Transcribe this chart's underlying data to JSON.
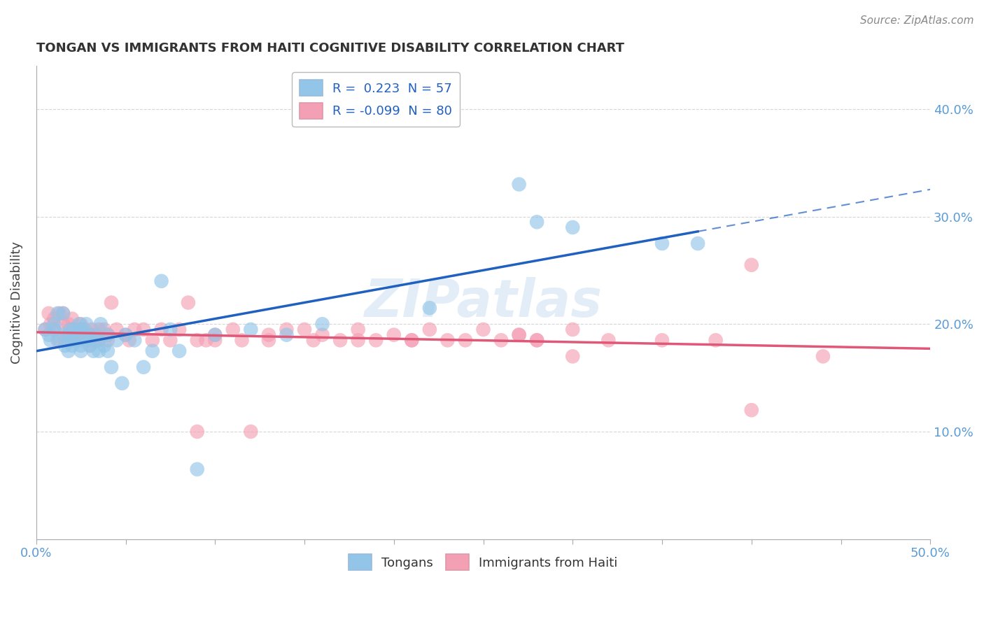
{
  "title": "TONGAN VS IMMIGRANTS FROM HAITI COGNITIVE DISABILITY CORRELATION CHART",
  "source": "Source: ZipAtlas.com",
  "ylabel": "Cognitive Disability",
  "xlabel": "",
  "xlim": [
    0.0,
    0.5
  ],
  "ylim": [
    0.0,
    0.44
  ],
  "color_tongan": "#92c5e8",
  "color_haiti": "#f4a0b4",
  "line_color_tongan": "#2060c0",
  "line_color_haiti": "#e05878",
  "background": "#ffffff",
  "tongan_x": [
    0.005,
    0.007,
    0.008,
    0.01,
    0.01,
    0.012,
    0.013,
    0.015,
    0.015,
    0.016,
    0.018,
    0.018,
    0.019,
    0.02,
    0.02,
    0.021,
    0.022,
    0.022,
    0.024,
    0.025,
    0.025,
    0.025,
    0.026,
    0.028,
    0.028,
    0.03,
    0.03,
    0.03,
    0.032,
    0.033,
    0.035,
    0.035,
    0.036,
    0.038,
    0.04,
    0.04,
    0.042,
    0.045,
    0.048,
    0.05,
    0.055,
    0.06,
    0.065,
    0.07,
    0.075,
    0.08,
    0.09,
    0.1,
    0.12,
    0.14,
    0.16,
    0.22,
    0.27,
    0.28,
    0.3,
    0.35,
    0.37
  ],
  "tongan_y": [
    0.195,
    0.19,
    0.185,
    0.2,
    0.195,
    0.21,
    0.185,
    0.19,
    0.21,
    0.18,
    0.19,
    0.175,
    0.195,
    0.185,
    0.18,
    0.195,
    0.19,
    0.185,
    0.2,
    0.195,
    0.18,
    0.175,
    0.195,
    0.185,
    0.2,
    0.18,
    0.185,
    0.19,
    0.175,
    0.19,
    0.185,
    0.175,
    0.2,
    0.18,
    0.19,
    0.175,
    0.16,
    0.185,
    0.145,
    0.19,
    0.185,
    0.16,
    0.175,
    0.24,
    0.195,
    0.175,
    0.065,
    0.19,
    0.195,
    0.19,
    0.2,
    0.215,
    0.33,
    0.295,
    0.29,
    0.275,
    0.275
  ],
  "haiti_x": [
    0.005,
    0.007,
    0.008,
    0.01,
    0.01,
    0.012,
    0.013,
    0.015,
    0.015,
    0.016,
    0.018,
    0.018,
    0.02,
    0.02,
    0.021,
    0.022,
    0.024,
    0.025,
    0.025,
    0.025,
    0.027,
    0.028,
    0.03,
    0.03,
    0.031,
    0.033,
    0.035,
    0.035,
    0.038,
    0.04,
    0.04,
    0.042,
    0.045,
    0.05,
    0.052,
    0.055,
    0.06,
    0.065,
    0.07,
    0.075,
    0.08,
    0.085,
    0.09,
    0.1,
    0.11,
    0.12,
    0.13,
    0.14,
    0.15,
    0.16,
    0.17,
    0.18,
    0.19,
    0.2,
    0.21,
    0.22,
    0.23,
    0.25,
    0.27,
    0.28,
    0.3,
    0.32,
    0.35,
    0.38,
    0.4,
    0.27,
    0.3,
    0.1,
    0.09,
    0.095,
    0.115,
    0.13,
    0.155,
    0.18,
    0.21,
    0.24,
    0.26,
    0.28,
    0.4,
    0.44
  ],
  "haiti_y": [
    0.195,
    0.21,
    0.2,
    0.205,
    0.195,
    0.185,
    0.21,
    0.2,
    0.21,
    0.185,
    0.19,
    0.2,
    0.195,
    0.205,
    0.185,
    0.19,
    0.195,
    0.2,
    0.19,
    0.185,
    0.195,
    0.185,
    0.19,
    0.18,
    0.195,
    0.185,
    0.195,
    0.185,
    0.195,
    0.19,
    0.185,
    0.22,
    0.195,
    0.19,
    0.185,
    0.195,
    0.195,
    0.185,
    0.195,
    0.185,
    0.195,
    0.22,
    0.1,
    0.19,
    0.195,
    0.1,
    0.19,
    0.195,
    0.195,
    0.19,
    0.185,
    0.195,
    0.185,
    0.19,
    0.185,
    0.195,
    0.185,
    0.195,
    0.19,
    0.185,
    0.195,
    0.185,
    0.185,
    0.185,
    0.255,
    0.19,
    0.17,
    0.185,
    0.185,
    0.185,
    0.185,
    0.185,
    0.185,
    0.185,
    0.185,
    0.185,
    0.185,
    0.185,
    0.12,
    0.17
  ]
}
